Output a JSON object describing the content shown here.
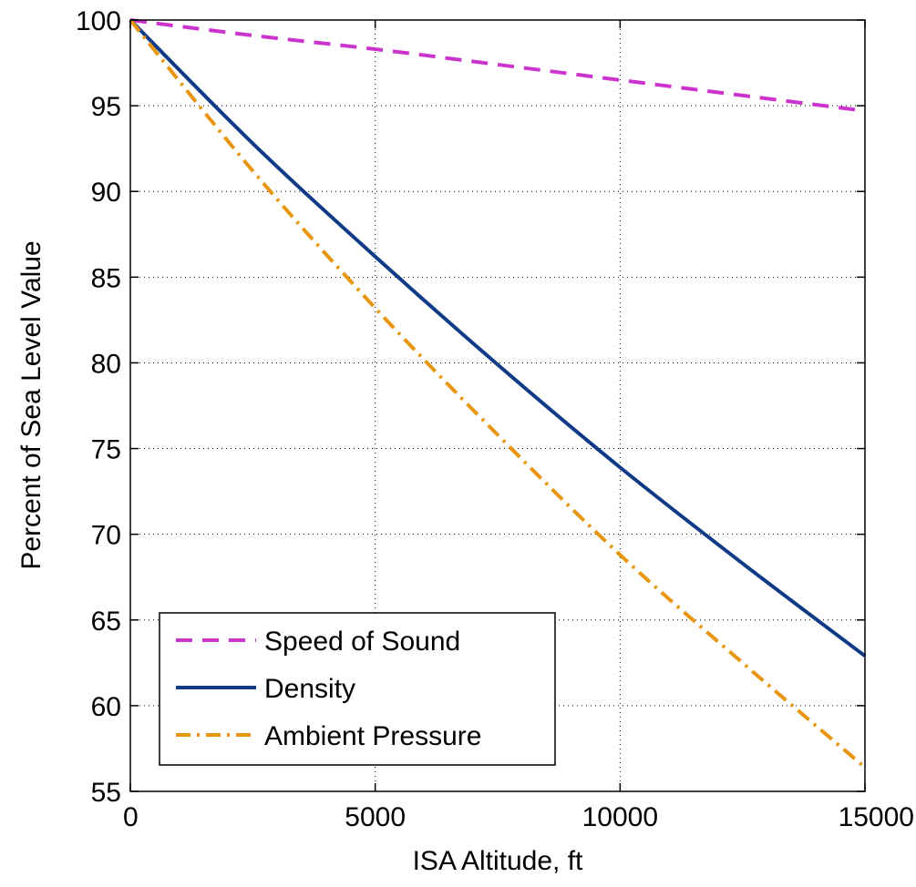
{
  "chart_data": {
    "type": "line",
    "title": "",
    "xlabel": "ISA Altitude, ft",
    "ylabel": "Percent of Sea Level Value",
    "xlim": [
      0,
      15000
    ],
    "ylim": [
      55,
      100
    ],
    "xticks": [
      0,
      5000,
      10000,
      15000
    ],
    "yticks": [
      55,
      60,
      65,
      70,
      75,
      80,
      85,
      90,
      95,
      100
    ],
    "grid": true,
    "legend_position": "bottom-left",
    "series": [
      {
        "name": "Speed of Sound",
        "color": "#cc33cc",
        "style": "dashed",
        "x": [
          0,
          2500,
          5000,
          7500,
          10000,
          12500,
          15000
        ],
        "y": [
          100,
          99.1,
          98.3,
          97.4,
          96.5,
          95.6,
          94.7
        ]
      },
      {
        "name": "Density",
        "color": "#0f3a85",
        "style": "solid",
        "x": [
          0,
          2500,
          5000,
          7500,
          10000,
          12500,
          15000
        ],
        "y": [
          100,
          92.8,
          86.2,
          79.9,
          73.9,
          68.3,
          62.9
        ]
      },
      {
        "name": "Ambient Pressure",
        "color": "#e8960f",
        "style": "dashdot",
        "x": [
          0,
          2500,
          5000,
          7500,
          10000,
          12500,
          15000
        ],
        "y": [
          100,
          91.2,
          83.2,
          75.8,
          68.8,
          62.5,
          56.4
        ]
      }
    ]
  }
}
